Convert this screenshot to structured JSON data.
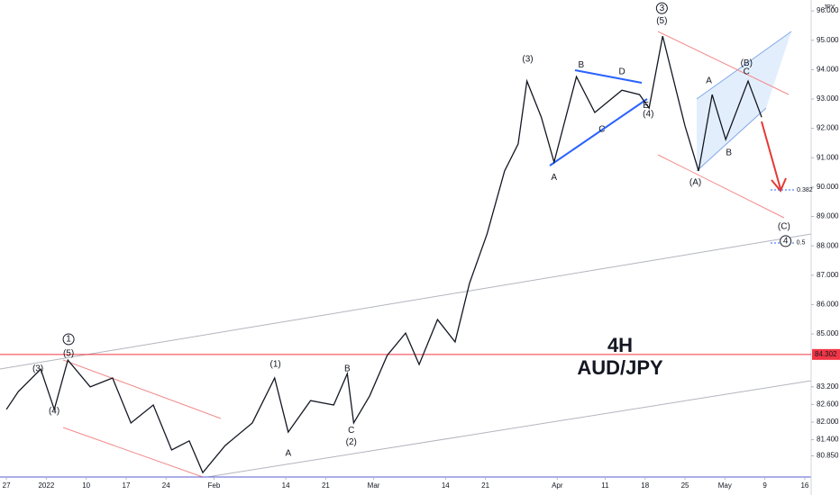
{
  "chart_data": {
    "type": "line",
    "symbol": "AUD/JPY",
    "timeframe": "4H",
    "currency": "JPY",
    "xlim": [
      -0.8,
      100.8
    ],
    "ylim": [
      80.13,
      96.37
    ],
    "xticks": [
      {
        "value": 0,
        "label": "27"
      },
      {
        "value": 5,
        "label": "2022"
      },
      {
        "value": 10,
        "label": "10"
      },
      {
        "value": 15,
        "label": "17"
      },
      {
        "value": 20,
        "label": "24"
      },
      {
        "value": 26,
        "label": "Feb"
      },
      {
        "value": 35,
        "label": "14"
      },
      {
        "value": 40,
        "label": "21"
      },
      {
        "value": 46,
        "label": "Mar"
      },
      {
        "value": 55,
        "label": "14"
      },
      {
        "value": 60,
        "label": "21"
      },
      {
        "value": 69,
        "label": "Apr"
      },
      {
        "value": 75,
        "label": "11"
      },
      {
        "value": 80,
        "label": "18"
      },
      {
        "value": 85,
        "label": "25"
      },
      {
        "value": 90,
        "label": "May"
      },
      {
        "value": 95,
        "label": "9"
      },
      {
        "value": 100,
        "label": "16"
      }
    ],
    "yticks": [
      {
        "value": 96,
        "label": "96.000"
      },
      {
        "value": 95,
        "label": "95.000"
      },
      {
        "value": 94,
        "label": "94.000"
      },
      {
        "value": 93,
        "label": "93.000"
      },
      {
        "value": 92,
        "label": "92.000"
      },
      {
        "value": 91,
        "label": "91.000"
      },
      {
        "value": 90,
        "label": "90.000"
      },
      {
        "value": 89,
        "label": "89.000"
      },
      {
        "value": 88,
        "label": "88.000"
      },
      {
        "value": 87,
        "label": "87.000"
      },
      {
        "value": 86,
        "label": "86.000"
      },
      {
        "value": 85,
        "label": "85.000"
      },
      {
        "value": 83.2,
        "label": "83.200"
      },
      {
        "value": 82.6,
        "label": "82.600"
      },
      {
        "value": 82,
        "label": "82.000"
      },
      {
        "value": 81.4,
        "label": "81.400"
      },
      {
        "value": 80.85,
        "label": "80.850"
      }
    ],
    "price_line": {
      "value": 84.302,
      "label": "84.302",
      "color": "#f23645"
    },
    "x": [
      0,
      1.5,
      4.3,
      6,
      7.7,
      10.5,
      13.3,
      15.6,
      18.4,
      20.7,
      22.9,
      24.6,
      27.4,
      30.8,
      33.6,
      35.3,
      38.1,
      41,
      42.7,
      43.5,
      45.5,
      47.7,
      50,
      51.7,
      54,
      56.2,
      58,
      60.2,
      62.4,
      64.1,
      65.2,
      67,
      68.6,
      71.4,
      73.7,
      77.1,
      79.3,
      80.5,
      82.2,
      85,
      86.7,
      88.4,
      90.1,
      92.9,
      94.6
    ],
    "series": [
      {
        "name": "AUD/JPY",
        "color": "#131722",
        "values": [
          82.43,
          83.04,
          83.8,
          82.43,
          84.11,
          83.2,
          83.5,
          81.97,
          82.58,
          81.05,
          81.36,
          80.28,
          81.2,
          81.97,
          83.5,
          81.66,
          82.73,
          82.58,
          83.65,
          81.97,
          82.89,
          84.27,
          85.03,
          83.96,
          85.49,
          84.73,
          86.72,
          88.4,
          90.55,
          91.47,
          93.61,
          92.38,
          90.85,
          93.76,
          92.54,
          93.3,
          93.15,
          92.69,
          95.14,
          92.08,
          90.55,
          93.15,
          91.62,
          93.61,
          92.38
        ]
      }
    ],
    "annotations": [
      {
        "text": "(3)",
        "x": 3.95,
        "y": 83.81,
        "color": "#2a2ad0"
      },
      {
        "text": "(4)",
        "x": 5.98,
        "y": 82.37,
        "color": "#2a2ad0"
      },
      {
        "text": "(5)",
        "x": 7.79,
        "y": 84.33,
        "color": "#2a2ad0"
      },
      {
        "text": "1",
        "x": 7.79,
        "y": 84.82,
        "color": "#131722",
        "circled": true
      },
      {
        "text": "(1)",
        "x": 33.7,
        "y": 83.96,
        "color": "#2a2ad0"
      },
      {
        "text": "A",
        "x": 35.3,
        "y": 80.93,
        "color": "#e53935"
      },
      {
        "text": "B",
        "x": 42.7,
        "y": 83.81,
        "color": "#e53935"
      },
      {
        "text": "C",
        "x": 43.2,
        "y": 81.72,
        "color": "#e53935"
      },
      {
        "text": "(2)",
        "x": 43.2,
        "y": 81.32,
        "color": "#2a2ad0"
      },
      {
        "text": "(3)",
        "x": 65.3,
        "y": 94.35,
        "color": "#2a2ad0"
      },
      {
        "text": "A",
        "x": 68.6,
        "y": 90.33,
        "color": "#e53935"
      },
      {
        "text": "B",
        "x": 72.0,
        "y": 94.16,
        "color": "#e53935"
      },
      {
        "text": "C",
        "x": 74.6,
        "y": 91.96,
        "color": "#e53935"
      },
      {
        "text": "D",
        "x": 77.1,
        "y": 93.92,
        "color": "#e53935"
      },
      {
        "text": "E",
        "x": 80.1,
        "y": 92.78,
        "color": "#e53935"
      },
      {
        "text": "(4)",
        "x": 80.4,
        "y": 92.48,
        "color": "#2a2ad0"
      },
      {
        "text": "3",
        "x": 82.1,
        "y": 96.09,
        "color": "#131722",
        "circled": true
      },
      {
        "text": "(5)",
        "x": 82.1,
        "y": 95.66,
        "color": "#2a2ad0"
      },
      {
        "text": "A",
        "x": 88.0,
        "y": 93.61,
        "color": "#e53935"
      },
      {
        "text": "B",
        "x": 90.5,
        "y": 91.16,
        "color": "#e53935"
      },
      {
        "text": "(A)",
        "x": 86.3,
        "y": 90.15,
        "color": "#2a2ad0"
      },
      {
        "text": "(B)",
        "x": 92.7,
        "y": 94.22,
        "color": "#2a2ad0"
      },
      {
        "text": "C",
        "x": 92.7,
        "y": 93.92,
        "color": "#e53935"
      },
      {
        "text": "(C)",
        "x": 97.4,
        "y": 88.65,
        "color": "#2a2ad0"
      },
      {
        "text": "4",
        "x": 97.6,
        "y": 88.16,
        "color": "#131722",
        "circled": true
      },
      {
        "text": "0.382",
        "x": 100,
        "y": 89.9,
        "color": "#2a2ad0",
        "small": true
      },
      {
        "text": "0.5",
        "x": 99.5,
        "y": 88.1,
        "color": "#2a2ad0",
        "small": true
      }
    ]
  }
}
